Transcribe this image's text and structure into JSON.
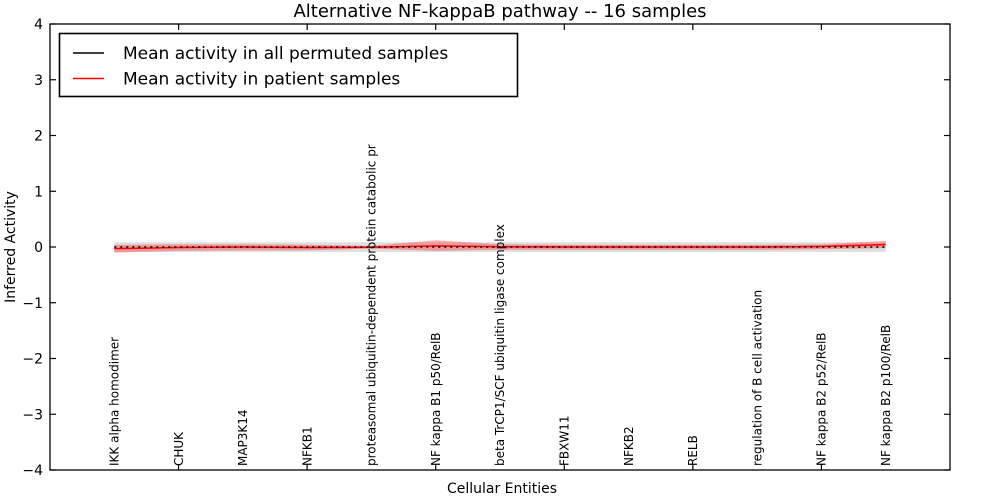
{
  "title": "Alternative NF-kappaB pathway -- 16 samples",
  "axes": {
    "ylabel": "Inferred Activity",
    "xlabel": "Cellular Entities",
    "ytick_labels": [
      "4",
      "3",
      "2",
      "1",
      "0",
      "−1",
      "−2",
      "−3",
      "−4"
    ],
    "ytick_values": [
      4,
      3,
      2,
      1,
      0,
      -1,
      -2,
      -3,
      -4
    ]
  },
  "legend": {
    "items": [
      {
        "label": "Mean activity in all permuted samples",
        "color": "#000000"
      },
      {
        "label": "Mean activity in patient samples",
        "color": "#ff0000"
      }
    ]
  },
  "chart_data": {
    "type": "line",
    "title": "Alternative NF-kappaB pathway -- 16 samples",
    "xlabel": "Cellular Entities",
    "ylabel": "Inferred Activity",
    "ylim": [
      -4,
      4
    ],
    "yticks": [
      -4,
      -3,
      -2,
      -1,
      0,
      1,
      2,
      3,
      4
    ],
    "grid": false,
    "legend_position": "upper left",
    "categories": [
      "IKK alpha homodimer",
      "CHUK",
      "MAP3K14",
      "NFKB1",
      "proteasomal ubiquitin-dependent protein catabolic pr",
      "NF kappa B1 p50/RelB",
      "beta TrCP1/SCF ubiquitin ligase complex",
      "FBXW11",
      "NFKB2",
      "RELB",
      "regulation of B cell activation",
      "NF kappa B2 p52/RelB",
      "NF kappa B2 p100/RelB"
    ],
    "series": [
      {
        "name": "Mean activity in all permuted samples",
        "color": "#000000",
        "style": "dotted",
        "values": [
          0,
          0,
          0,
          0,
          0,
          0,
          0,
          0,
          0,
          0,
          0,
          0,
          0
        ],
        "band": {
          "upper": [
            0.085,
            0.085,
            0.085,
            0.085,
            0.085,
            0.085,
            0.085,
            0.085,
            0.085,
            0.085,
            0.085,
            0.085,
            0.085
          ],
          "lower": [
            -0.09,
            -0.09,
            -0.09,
            -0.09,
            -0.09,
            -0.09,
            -0.09,
            -0.09,
            -0.09,
            -0.09,
            -0.09,
            -0.09,
            -0.09
          ],
          "color": "#aaaaaa",
          "opacity": 0.38
        }
      },
      {
        "name": "Mean activity in patient samples",
        "color": "#ff0000",
        "style": "solid",
        "values": [
          -0.03,
          -0.01,
          0,
          -0.01,
          -0.005,
          0.02,
          0.005,
          0,
          0,
          0,
          0,
          0.01,
          0.045
        ],
        "band": {
          "upper": [
            0.04,
            0.05,
            0.05,
            0.04,
            0.02,
            0.12,
            0.05,
            0.04,
            0.04,
            0.04,
            0.04,
            0.05,
            0.11
          ],
          "lower": [
            -0.1,
            -0.07,
            -0.06,
            -0.06,
            -0.03,
            -0.07,
            -0.05,
            -0.05,
            -0.05,
            -0.05,
            -0.05,
            -0.04,
            -0.02
          ],
          "color": "#ff0000",
          "opacity": 0.3
        }
      }
    ]
  }
}
